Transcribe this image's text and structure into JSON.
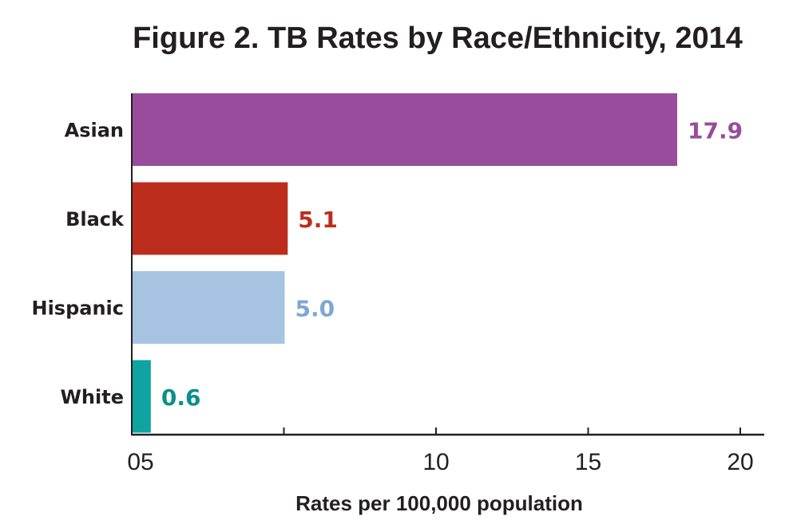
{
  "chart_data": {
    "type": "bar",
    "orientation": "horizontal",
    "title": "Figure 2. TB Rates by Race/Ethnicity, 2014",
    "xlabel": "Rates per 100,000 population",
    "ylabel": "",
    "categories": [
      "Asian",
      "Black",
      "Hispanic",
      "White"
    ],
    "values": [
      17.9,
      5.1,
      5.0,
      0.6
    ],
    "value_labels": [
      "17.9",
      "5.1",
      "5.0",
      "0.6"
    ],
    "colors": [
      "#984c9c",
      "#bc2d1e",
      "#a6c3e2",
      "#0fa3a1"
    ],
    "label_colors": [
      "#984c9c",
      "#bc2d1e",
      "#7ba7d3",
      "#0b8f8d"
    ],
    "xlim": [
      0,
      20.8
    ],
    "ticks": [
      {
        "value": 0,
        "label": "05"
      },
      {
        "value": 5,
        "label": ""
      },
      {
        "value": 10,
        "label": "10"
      },
      {
        "value": 15,
        "label": "15"
      },
      {
        "value": 20,
        "label": "20"
      }
    ],
    "grid": false,
    "legend": "none"
  }
}
